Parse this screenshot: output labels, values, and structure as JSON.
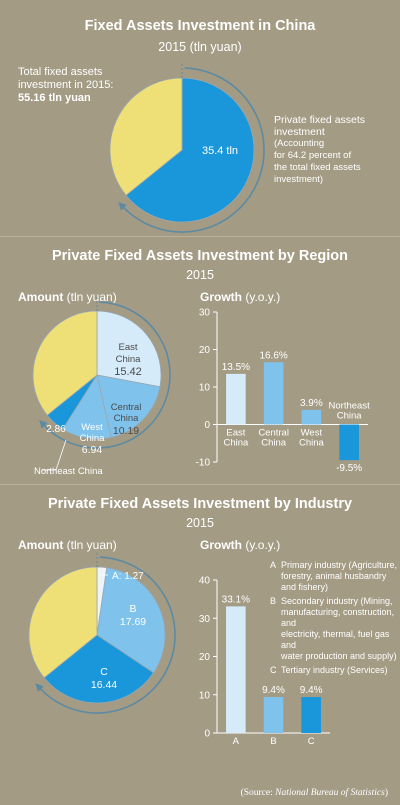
{
  "colors": {
    "yellow": "#efdf77",
    "blue": "#1a97da",
    "light_blue": "#7fc3ed",
    "pale_blue": "#d6ebf9",
    "white_slice": "#eef4fa",
    "background": "#a39b84"
  },
  "section1": {
    "title": "Fixed Assets Investment in China",
    "subtitle": "2015 (tln yuan)",
    "total_label_line1": "Total fixed assets",
    "total_label_line2": "investment in 2015:",
    "total_value": "55.16 tln yuan",
    "slice_label": "35.4 tln",
    "note_line1": "Private fixed assets",
    "note_line2": "investment",
    "note_line3": "(Accounting",
    "note_line4": "for 64.2 percent of",
    "note_line5": "the total fixed assets",
    "note_line6": "investment)"
  },
  "section2": {
    "title": "Private Fixed Assets Investment by Region",
    "subtitle": "2015",
    "amount_head": "Amount",
    "amount_unit": "(tln yuan)",
    "growth_head": "Growth",
    "growth_unit": "(y.o.y.)",
    "pie_labels": {
      "east_name1": "East",
      "east_name2": "China",
      "east_value": "15.42",
      "central_name1": "Central",
      "central_name2": "China",
      "central_value": "10.19",
      "west_name1": "West",
      "west_name2": "China",
      "west_value": "6.94",
      "northeast_value": "2.86",
      "northeast_name": "Northeast China"
    }
  },
  "section3": {
    "title": "Private Fixed Assets Investment by Industry",
    "subtitle": "2015",
    "amount_head": "Amount",
    "amount_unit": "(tln yuan)",
    "growth_head": "Growth",
    "growth_unit": "(y.o.y.)",
    "pie_labels": {
      "a_label": "A: 1.27",
      "b_name": "B",
      "b_value": "17.69",
      "c_name": "C",
      "c_value": "16.44"
    },
    "legend": {
      "a_key": "A",
      "a_line1": "Primary industry (Agriculture,",
      "a_line2": "forestry, animal husbandry",
      "a_line3": "and fishery)",
      "b_key": "B",
      "b_line1": "Secondary industry (Mining,",
      "b_line2": "manufacturing, construction, and",
      "b_line3": "electricity, thermal, fuel gas and",
      "b_line4": "water production and supply)",
      "c_key": "C",
      "c_line1": "Tertiary industry (Services)"
    }
  },
  "source_prefix": "(Source: ",
  "source_name": "National Bureau of Statistics",
  "source_suffix": ")",
  "chart_data": [
    {
      "type": "pie",
      "title": "Fixed Assets Investment in China",
      "subtitle": "2015 (tln yuan)",
      "total": 55.16,
      "slices": [
        {
          "label": "Private fixed assets investment",
          "value": 35.4,
          "percent": 64.2,
          "color": "#1a97da"
        },
        {
          "label": "",
          "value": 19.76,
          "color": "#efdf77"
        }
      ]
    },
    {
      "type": "pie",
      "title": "Private Fixed Assets Investment by Region",
      "subtitle": "2015",
      "unit": "tln yuan",
      "slices": [
        {
          "label": "East China",
          "value": 15.42,
          "color": "#d6ebf9"
        },
        {
          "label": "Central China",
          "value": 10.19,
          "color": "#7fc3ed"
        },
        {
          "label": "West China",
          "value": 6.94,
          "color": "#7fc3ed"
        },
        {
          "label": "Northeast China",
          "value": 2.86,
          "color": "#1a97da"
        },
        {
          "label": "",
          "value": 19.76,
          "color": "#efdf77"
        }
      ]
    },
    {
      "type": "bar",
      "title": "Growth (y.o.y.)",
      "categories": [
        "East China",
        "Central China",
        "West China",
        "Northeast China"
      ],
      "category_lines": [
        [
          "East",
          "China"
        ],
        [
          "Central",
          "China"
        ],
        [
          "West",
          "China"
        ],
        [
          "Northeast",
          "China"
        ]
      ],
      "values": [
        13.5,
        16.6,
        3.9,
        -9.5
      ],
      "value_labels": [
        "13.5%",
        "16.6%",
        "3.9%",
        "-9.5%"
      ],
      "colors": [
        "#d6ebf9",
        "#7fc3ed",
        "#7fc3ed",
        "#1a97da"
      ],
      "ylim": [
        -10,
        30
      ],
      "yticks": [
        -10,
        0,
        10,
        20,
        30
      ],
      "grid": false
    },
    {
      "type": "pie",
      "title": "Private Fixed Assets Investment by Industry",
      "subtitle": "2015",
      "unit": "tln yuan",
      "slices": [
        {
          "label": "A",
          "value": 1.27,
          "color": "#eef4fa"
        },
        {
          "label": "B",
          "value": 17.69,
          "color": "#7fc3ed"
        },
        {
          "label": "C",
          "value": 16.44,
          "color": "#1a97da"
        },
        {
          "label": "",
          "value": 19.76,
          "color": "#efdf77"
        }
      ]
    },
    {
      "type": "bar",
      "title": "Growth (y.o.y.)",
      "categories": [
        "A",
        "B",
        "C"
      ],
      "values": [
        33.1,
        9.4,
        9.4
      ],
      "value_labels": [
        "33.1%",
        "9.4%",
        "9.4%"
      ],
      "colors": [
        "#d6ebf9",
        "#7fc3ed",
        "#1a97da"
      ],
      "ylim": [
        0,
        40
      ],
      "yticks": [
        0,
        10,
        20,
        30,
        40
      ],
      "grid": false
    }
  ]
}
